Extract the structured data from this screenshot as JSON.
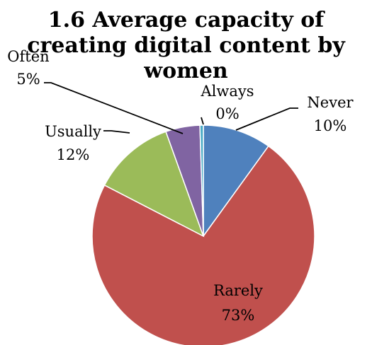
{
  "chart_data": {
    "type": "pie",
    "title_lines": [
      "1.6 Average capacity of",
      "creating digital content by",
      "women"
    ],
    "categories": [
      "Never",
      "Rarely",
      "Usually",
      "Often",
      "Always"
    ],
    "values": [
      10,
      73,
      12,
      5,
      0.5
    ],
    "percent_labels": [
      "10%",
      "73%",
      "12%",
      "5%",
      "0%"
    ],
    "colors": [
      "#4f81bd",
      "#c0504d",
      "#9bbb59",
      "#8064a2",
      "#4bacc6"
    ],
    "legend": "none",
    "grid": false
  }
}
